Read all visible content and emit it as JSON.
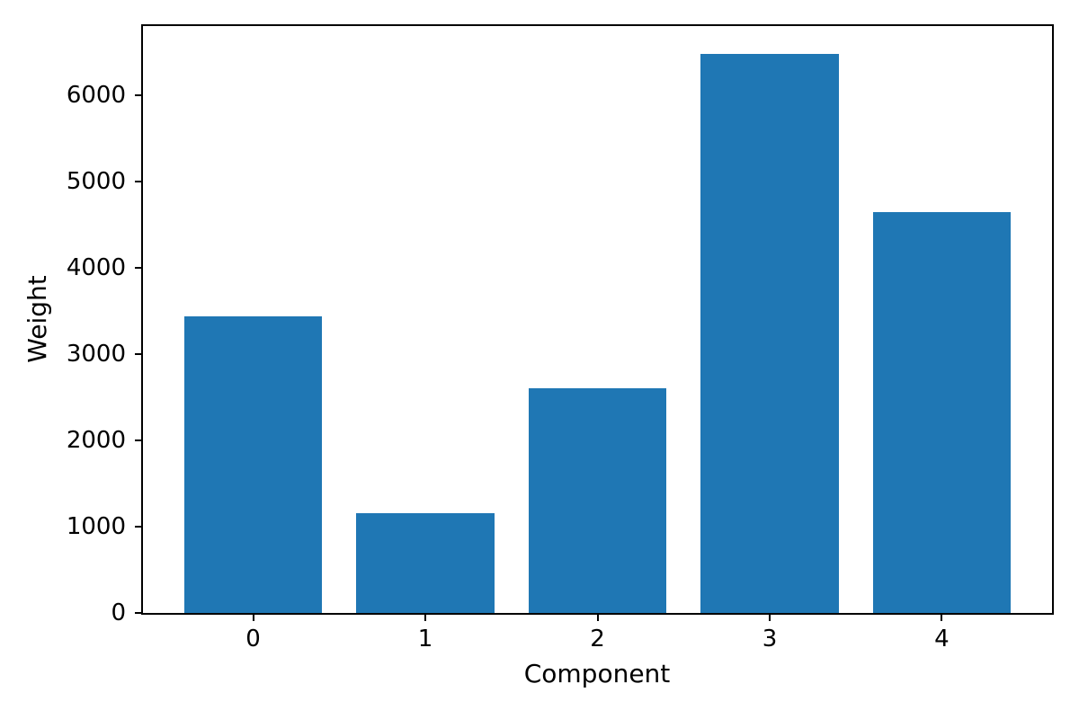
{
  "figure": {
    "background_color": "#ffffff"
  },
  "chart_data": {
    "type": "bar",
    "title": "",
    "xlabel": "Component",
    "ylabel": "Weight",
    "categories": [
      "0",
      "1",
      "2",
      "3",
      "4"
    ],
    "values": [
      3440,
      1160,
      2600,
      6480,
      4650
    ],
    "yticks": [
      0,
      1000,
      2000,
      3000,
      4000,
      5000,
      6000
    ],
    "ylim": [
      0,
      6804
    ],
    "xlim": [
      -0.64,
      4.64
    ],
    "bar_width": 0.8,
    "bar_color": "#1f77b4",
    "axis_color": "#000000",
    "grid": false,
    "legend": false
  }
}
